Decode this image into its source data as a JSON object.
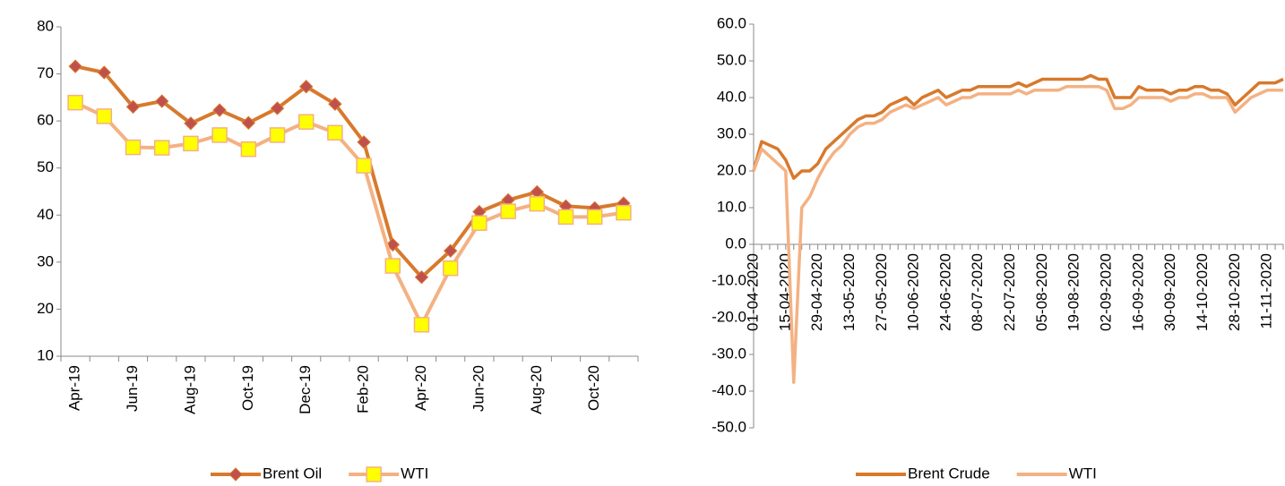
{
  "chart_data": [
    {
      "type": "line",
      "categories": [
        "Apr-19",
        null,
        "Jun-19",
        null,
        "Aug-19",
        null,
        "Oct-19",
        null,
        "Dec-19",
        null,
        "Feb-20",
        null,
        "Apr-20",
        null,
        "Jun-20",
        null,
        "Aug-20",
        null,
        "Oct-20",
        null
      ],
      "series": [
        {
          "name": "Brent Oil",
          "color": "#d8792c",
          "marker": "diamond",
          "marker_color": "#c0504d",
          "values": [
            71.6,
            70.3,
            63.0,
            64.2,
            59.5,
            62.3,
            59.6,
            62.7,
            67.3,
            63.6,
            55.5,
            33.7,
            26.8,
            32.4,
            40.7,
            43.2,
            44.9,
            41.9,
            41.5,
            42.5
          ]
        },
        {
          "name": "WTI",
          "color": "#f4b183",
          "marker": "square",
          "marker_color": "#ffff00",
          "values": [
            63.9,
            61.0,
            54.4,
            54.3,
            55.2,
            57.0,
            54.0,
            57.0,
            59.8,
            57.5,
            50.5,
            29.2,
            16.7,
            28.7,
            38.3,
            40.8,
            42.4,
            39.6,
            39.6,
            40.5
          ]
        }
      ],
      "ylim": [
        10,
        80
      ],
      "yticks": [
        10,
        20,
        30,
        40,
        50,
        60,
        70,
        80
      ]
    },
    {
      "type": "line",
      "categories": [
        "01-04-2020",
        null,
        null,
        null,
        "15-04-2020",
        null,
        null,
        null,
        "29-04-2020",
        null,
        null,
        null,
        "13-05-2020",
        null,
        null,
        null,
        "27-05-2020",
        null,
        null,
        null,
        "10-06-2020",
        null,
        null,
        null,
        "24-06-2020",
        null,
        null,
        null,
        "08-07-2020",
        null,
        null,
        null,
        "22-07-2020",
        null,
        null,
        null,
        "05-08-2020",
        null,
        null,
        null,
        "19-08-2020",
        null,
        null,
        null,
        "02-09-2020",
        null,
        null,
        null,
        "16-09-2020",
        null,
        null,
        null,
        "30-09-2020",
        null,
        null,
        null,
        "14-10-2020",
        null,
        null,
        null,
        "28-10-2020",
        null,
        null,
        null,
        "11-11-2020",
        null,
        null
      ],
      "series": [
        {
          "name": "Brent Crude",
          "color": "#d8792c",
          "values": [
            20,
            28,
            27,
            26,
            23,
            18,
            20,
            20,
            22,
            26,
            28,
            30,
            32,
            34,
            35,
            35,
            36,
            38,
            39,
            40,
            38,
            40,
            41,
            42,
            40,
            41,
            42,
            42,
            43,
            43,
            43,
            43,
            43,
            44,
            43,
            44,
            45,
            45,
            45,
            45,
            45,
            45,
            46,
            45,
            45,
            40,
            40,
            40,
            43,
            42,
            42,
            42,
            41,
            42,
            42,
            43,
            43,
            42,
            42,
            41,
            38,
            40,
            42,
            44,
            44,
            44,
            45
          ]
        },
        {
          "name": "WTI",
          "color": "#f4b183",
          "values": [
            20,
            26,
            24,
            22,
            20,
            -37.6,
            10,
            13,
            18,
            22,
            25,
            27,
            30,
            32,
            33,
            33,
            34,
            36,
            37,
            38,
            37,
            38,
            39,
            40,
            38,
            39,
            40,
            40,
            41,
            41,
            41,
            41,
            41,
            42,
            41,
            42,
            42,
            42,
            42,
            43,
            43,
            43,
            43,
            43,
            42,
            37,
            37,
            38,
            40,
            40,
            40,
            40,
            39,
            40,
            40,
            41,
            41,
            40,
            40,
            40,
            36,
            38,
            40,
            41,
            42,
            42,
            42
          ]
        }
      ],
      "ylim": [
        -50,
        60
      ],
      "yticks": [
        {
          "value": -50,
          "label": "-50.0"
        },
        {
          "value": -40,
          "label": "-40.0"
        },
        {
          "value": -30,
          "label": "-30.0"
        },
        {
          "value": -20,
          "label": "-20.0"
        },
        {
          "value": -10,
          "label": "-10.0"
        },
        {
          "value": 0,
          "label": "0.0"
        },
        {
          "value": 10,
          "label": "10.0"
        },
        {
          "value": 20,
          "label": "20.0"
        },
        {
          "value": 30,
          "label": "30.0"
        },
        {
          "value": 40,
          "label": "40.0"
        },
        {
          "value": 50,
          "label": "50.0"
        },
        {
          "value": 60,
          "label": "60.0"
        }
      ]
    }
  ]
}
